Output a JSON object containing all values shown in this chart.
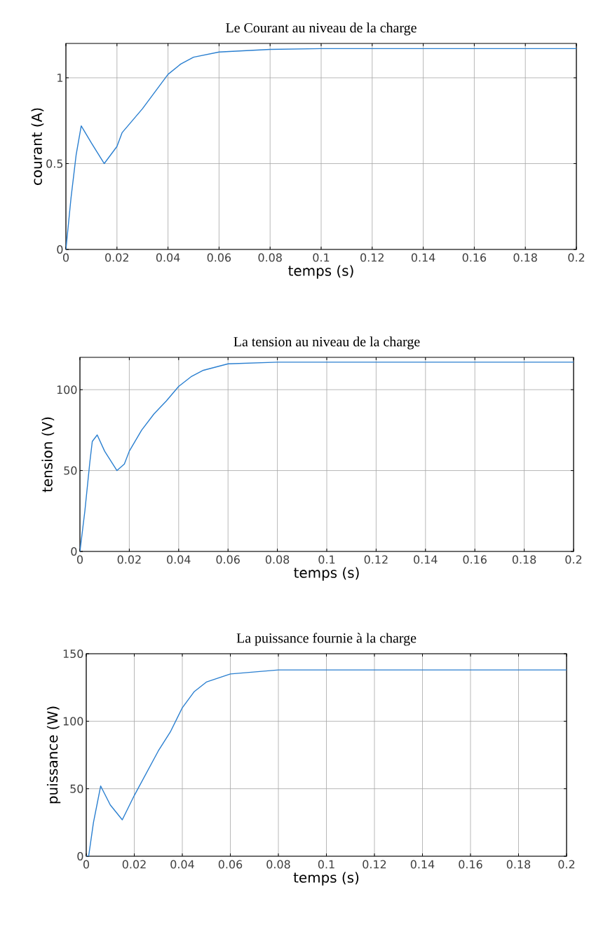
{
  "chart_data": [
    {
      "type": "line",
      "title": "Le Courant au niveau de la charge",
      "xlabel": "temps (s)",
      "ylabel": "courant (A)",
      "grid": true,
      "xlim": [
        0,
        0.2
      ],
      "ylim": [
        0,
        1.2
      ],
      "xticks": [
        0,
        0.02,
        0.04,
        0.06,
        0.08,
        0.1,
        0.12,
        0.14,
        0.16,
        0.18,
        0.2
      ],
      "yticks": [
        0,
        0.5,
        1
      ],
      "x": [
        0,
        0.002,
        0.004,
        0.006,
        0.01,
        0.015,
        0.02,
        0.022,
        0.03,
        0.035,
        0.04,
        0.045,
        0.05,
        0.06,
        0.08,
        0.1,
        0.15,
        0.2
      ],
      "series": [
        {
          "color": "#2a7fd0",
          "values": [
            0,
            0.3,
            0.55,
            0.72,
            0.62,
            0.5,
            0.6,
            0.68,
            0.82,
            0.92,
            1.02,
            1.08,
            1.12,
            1.15,
            1.165,
            1.17,
            1.17,
            1.17
          ]
        }
      ]
    },
    {
      "type": "line",
      "title": "La tension au niveau de la charge",
      "xlabel": "temps (s)",
      "ylabel": "tension (V)",
      "grid": true,
      "xlim": [
        0,
        0.2
      ],
      "ylim": [
        0,
        120
      ],
      "xticks": [
        0,
        0.02,
        0.04,
        0.06,
        0.08,
        0.1,
        0.12,
        0.14,
        0.16,
        0.18,
        0.2
      ],
      "yticks": [
        0,
        50,
        100
      ],
      "x": [
        0,
        0.002,
        0.004,
        0.005,
        0.007,
        0.01,
        0.015,
        0.018,
        0.02,
        0.025,
        0.03,
        0.035,
        0.04,
        0.045,
        0.05,
        0.06,
        0.08,
        0.1,
        0.2
      ],
      "series": [
        {
          "color": "#2a7fd0",
          "values": [
            0,
            25,
            55,
            68,
            72,
            62,
            50,
            54,
            62,
            75,
            85,
            93,
            102,
            108,
            112,
            116,
            117,
            117,
            117
          ]
        }
      ]
    },
    {
      "type": "line",
      "title": "La puissance fournie à la charge",
      "xlabel": "temps (s)",
      "ylabel": "puissance (W)",
      "grid": true,
      "xlim": [
        0,
        0.2
      ],
      "ylim": [
        0,
        150
      ],
      "xticks": [
        0,
        0.02,
        0.04,
        0.06,
        0.08,
        0.1,
        0.12,
        0.14,
        0.16,
        0.18,
        0.2
      ],
      "yticks": [
        0,
        50,
        100,
        150
      ],
      "x": [
        0,
        0.001,
        0.003,
        0.006,
        0.01,
        0.015,
        0.02,
        0.03,
        0.035,
        0.04,
        0.045,
        0.05,
        0.06,
        0.08,
        0.1,
        0.2
      ],
      "series": [
        {
          "color": "#2a7fd0",
          "values": [
            0,
            0,
            25,
            52,
            38,
            27,
            45,
            78,
            92,
            110,
            122,
            129,
            135,
            138,
            138,
            138
          ]
        }
      ]
    }
  ]
}
